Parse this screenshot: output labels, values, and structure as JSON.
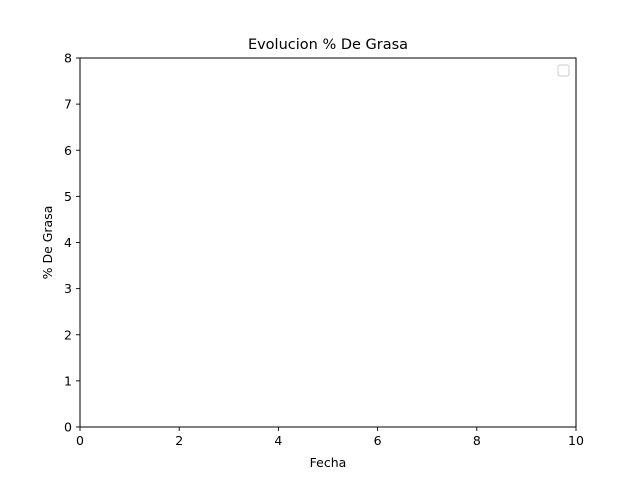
{
  "chart_data": {
    "type": "line",
    "title": "Evolucion % De Grasa",
    "xlabel": "Fecha",
    "ylabel": "% De Grasa",
    "xlim": [
      0,
      10
    ],
    "ylim": [
      0,
      8
    ],
    "xticks": [
      0,
      2,
      4,
      6,
      8,
      10
    ],
    "yticks": [
      0,
      1,
      2,
      3,
      4,
      5,
      6,
      7,
      8
    ],
    "xtick_labels": [
      "0",
      "2",
      "4",
      "6",
      "8",
      "10"
    ],
    "ytick_labels": [
      "0",
      "1",
      "2",
      "3",
      "4",
      "5",
      "6",
      "7",
      "8"
    ],
    "grid": false,
    "legend": {
      "placement": "upper right",
      "entries": []
    },
    "series": []
  }
}
